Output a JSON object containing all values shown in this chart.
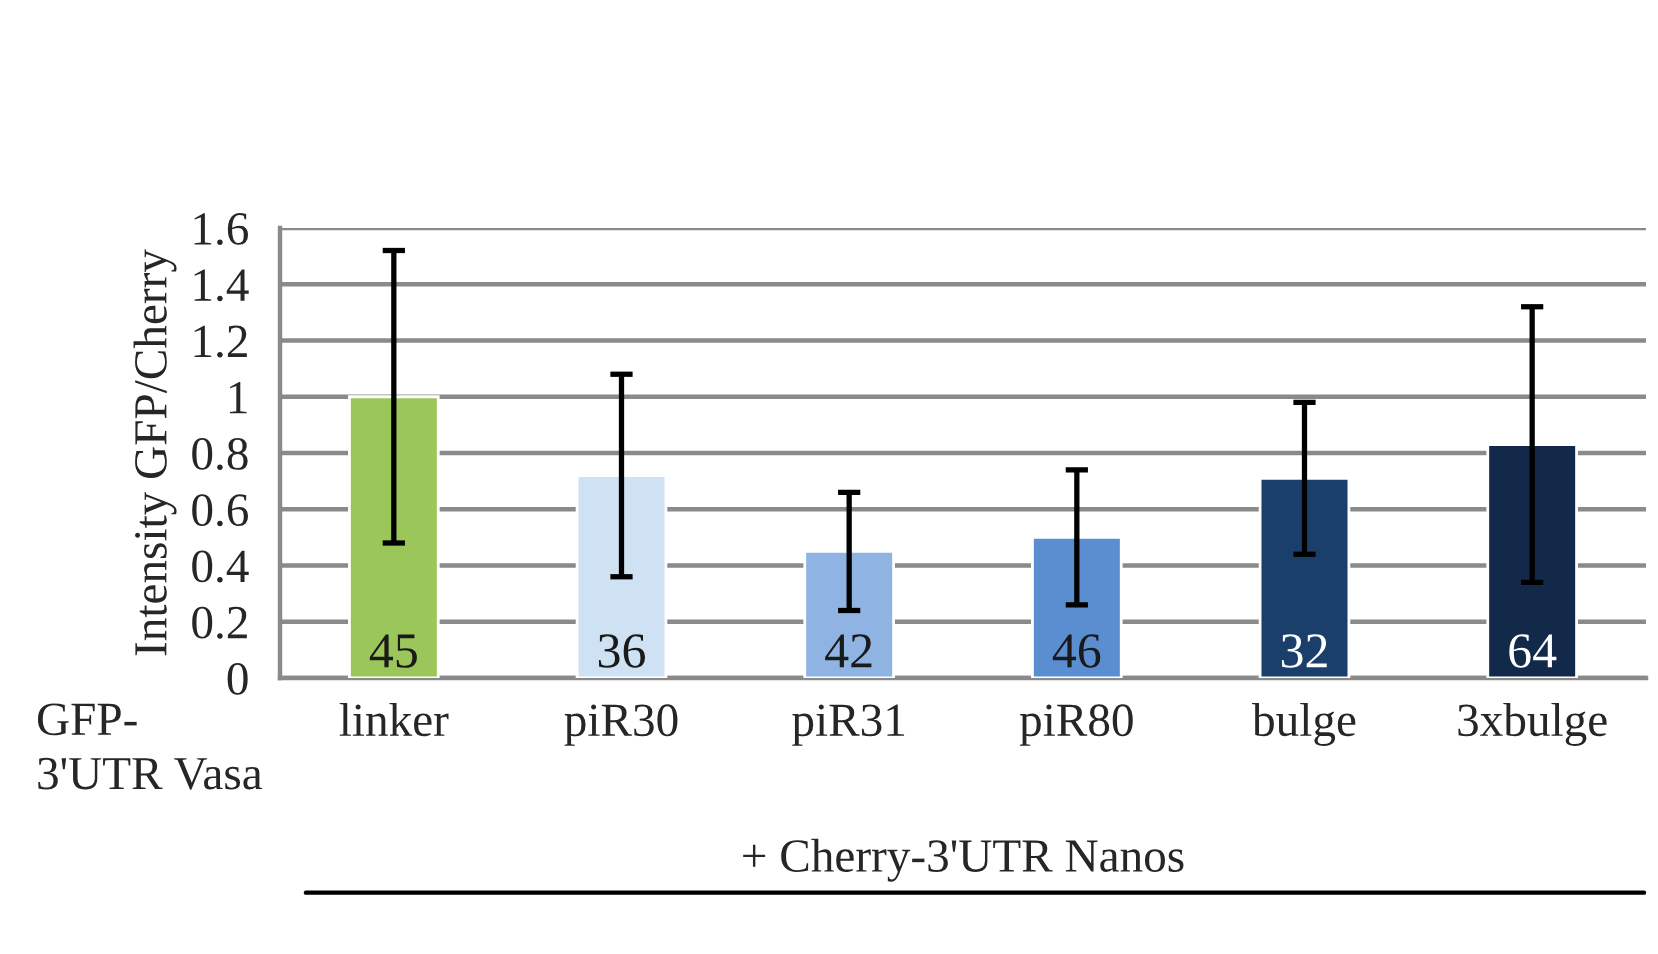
{
  "chart_data": {
    "type": "bar",
    "ylabel": "Intensity GFP/Cherry",
    "categories": [
      "linker",
      "piR30",
      "piR31",
      "piR80",
      "bulge",
      "3xbulge"
    ],
    "values": [
      1.0,
      0.72,
      0.45,
      0.5,
      0.71,
      0.83
    ],
    "colors": [
      "#9bc75a",
      "#cfe2f4",
      "#8fb4e3",
      "#5a8ed0",
      "#1b3f6b",
      "#13294a"
    ],
    "errors": [
      0.52,
      0.36,
      0.21,
      0.24,
      0.27,
      0.49
    ],
    "ylim": [
      0,
      1.6
    ],
    "yticks": [
      0,
      0.2,
      0.4,
      0.6,
      0.8,
      1,
      1.2,
      1.4,
      1.6
    ],
    "grid": "y",
    "annotations": [
      "GFP-\n3'UTR Vasa",
      "+ Cherry-3'UTR Nanos",
      {
        "text": "45",
        "x": "linker",
        "y": 0
      },
      {
        "text": "36",
        "x": "piR30",
        "y": 0
      },
      {
        "text": "42",
        "x": "piR31",
        "y": 0
      },
      {
        "text": "46",
        "x": "piR80",
        "y": 0
      },
      {
        "text": "32",
        "x": "bulge",
        "y": 0
      },
      {
        "text": "64",
        "x": "3xbulge",
        "y": 0
      }
    ]
  }
}
